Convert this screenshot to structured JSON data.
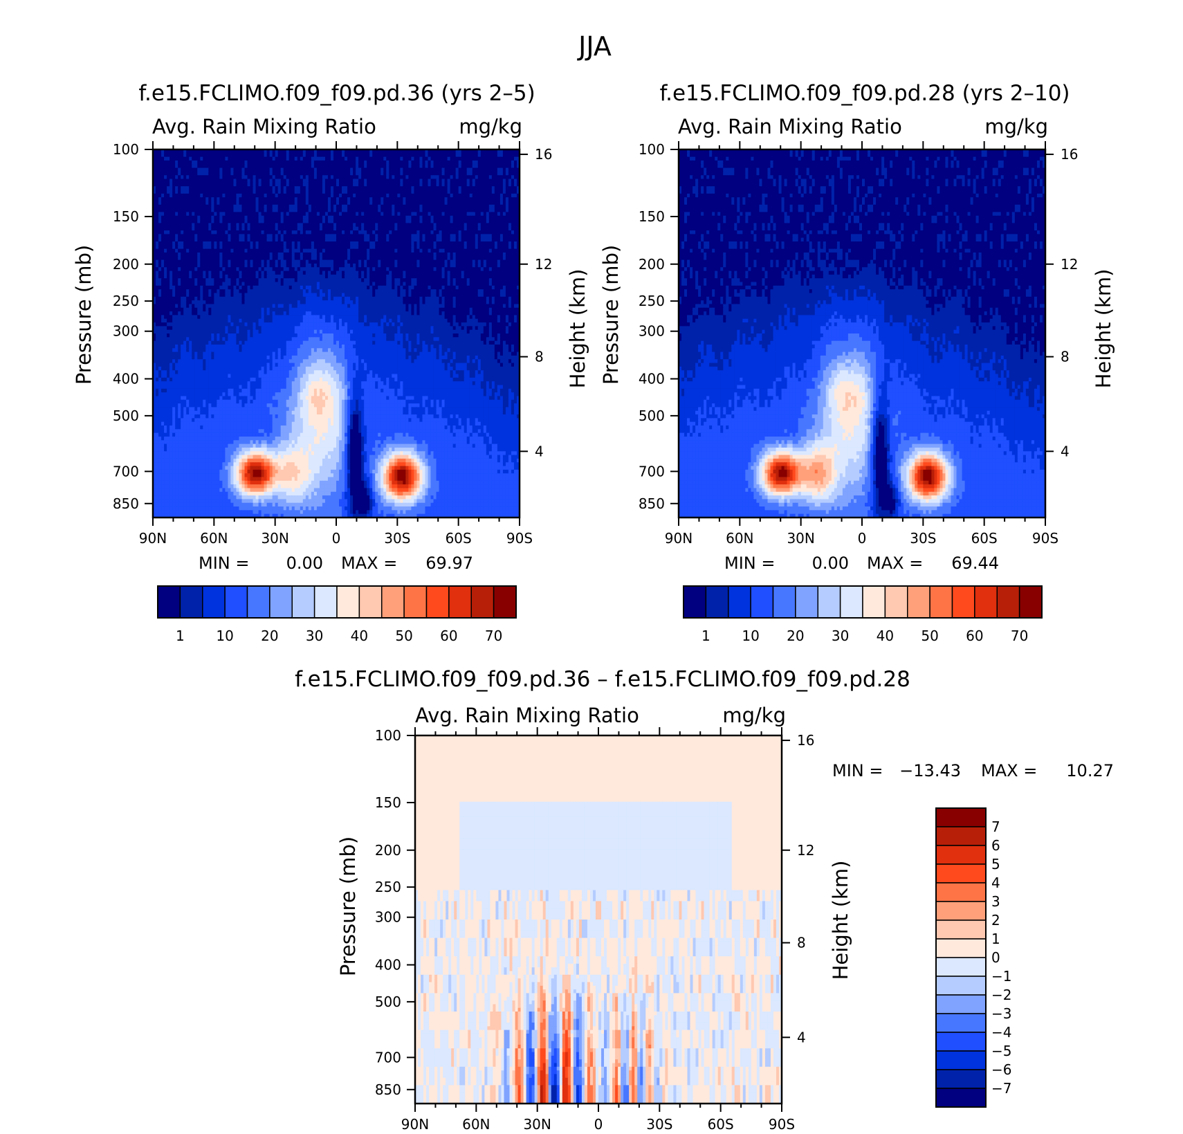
{
  "figure": {
    "title": "JJA",
    "colors": {
      "abs_levels": [
        "#000080",
        "#0022aa",
        "#0033dd",
        "#1f4fff",
        "#4877ff",
        "#7fa3ff",
        "#b4ccff",
        "#dbe8ff",
        "#ffe9dc",
        "#ffc8b0",
        "#ffa07a",
        "#ff7446",
        "#ff4a1d",
        "#e0300e",
        "#b81f08",
        "#880000"
      ],
      "diff_levels": [
        "#000080",
        "#0022aa",
        "#0033dd",
        "#1f4fff",
        "#4877ff",
        "#7fa3ff",
        "#b4ccff",
        "#dbe8ff",
        "#ffe9dc",
        "#ffc8b0",
        "#ffa07a",
        "#ff7446",
        "#ff4a1d",
        "#e0300e",
        "#b81f08",
        "#880000"
      ]
    }
  },
  "chart_data": [
    {
      "id": "panel-a",
      "type": "heatmap",
      "title": "f.e15.FCLIMO.f09_f09.pd.36 (yrs 2–5)",
      "left_label": "Avg. Rain Mixing Ratio",
      "right_label": "mg/kg",
      "xlabel": "",
      "ylabel": "Pressure (mb)",
      "y2label": "Height (km)",
      "xticks": [
        "90N",
        "60N",
        "30N",
        "0",
        "30S",
        "60S",
        "90S"
      ],
      "yticks": [
        "100",
        "150",
        "200",
        "250",
        "300",
        "400",
        "500",
        "700",
        "850"
      ],
      "y2ticks": [
        "16",
        "12",
        "8",
        "4"
      ],
      "min_label": "MIN =",
      "min_value": "0.00",
      "max_label": "MAX =",
      "max_value": "69.97",
      "min": 0.0,
      "max": 69.97,
      "colorbar_labels": [
        "1",
        "10",
        "20",
        "30",
        "40",
        "50",
        "60",
        "70"
      ]
    },
    {
      "id": "panel-b",
      "type": "heatmap",
      "title": "f.e15.FCLIMO.f09_f09.pd.28 (yrs 2–10)",
      "left_label": "Avg. Rain Mixing Ratio",
      "right_label": "mg/kg",
      "xlabel": "",
      "ylabel": "Pressure (mb)",
      "y2label": "Height (km)",
      "xticks": [
        "90N",
        "60N",
        "30N",
        "0",
        "30S",
        "60S",
        "90S"
      ],
      "yticks": [
        "100",
        "150",
        "200",
        "250",
        "300",
        "400",
        "500",
        "700",
        "850"
      ],
      "y2ticks": [
        "16",
        "12",
        "8",
        "4"
      ],
      "min_label": "MIN =",
      "min_value": "0.00",
      "max_label": "MAX =",
      "max_value": "69.44",
      "min": 0.0,
      "max": 69.44,
      "colorbar_labels": [
        "1",
        "10",
        "20",
        "30",
        "40",
        "50",
        "60",
        "70"
      ]
    },
    {
      "id": "panel-c",
      "type": "heatmap",
      "title": "f.e15.FCLIMO.f09_f09.pd.36 – f.e15.FCLIMO.f09_f09.pd.28",
      "left_label": "Avg. Rain Mixing Ratio",
      "right_label": "mg/kg",
      "xlabel": "",
      "ylabel": "Pressure (mb)",
      "y2label": "Height (km)",
      "xticks": [
        "90N",
        "60N",
        "30N",
        "0",
        "30S",
        "60S",
        "90S"
      ],
      "yticks": [
        "100",
        "150",
        "200",
        "250",
        "300",
        "400",
        "500",
        "700",
        "850"
      ],
      "y2ticks": [
        "16",
        "12",
        "8",
        "4"
      ],
      "min_label": "MIN =",
      "min_value": "−13.43",
      "max_label": "MAX =",
      "max_value": "10.27",
      "min": -13.43,
      "max": 10.27,
      "colorbar_labels": [
        "7",
        "6",
        "5",
        "4",
        "3",
        "2",
        "1",
        "0",
        "−1",
        "−2",
        "−3",
        "−4",
        "−5",
        "−6",
        "−7"
      ]
    }
  ]
}
